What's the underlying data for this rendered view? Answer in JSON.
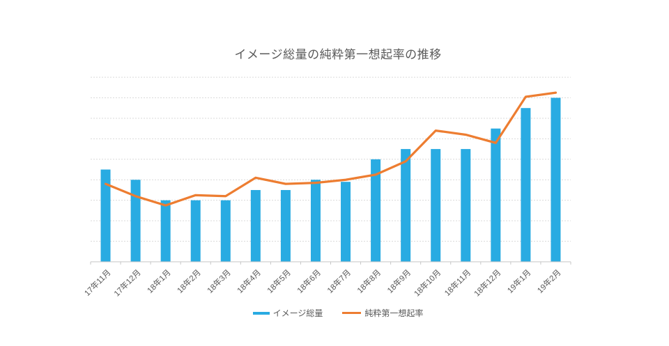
{
  "title": "イメージ総量の純粋第一想起率の推移",
  "chart_data": {
    "type": "bar",
    "subtype": "combo-bar-line",
    "title": "イメージ総量の純粋第一想起率の推移",
    "categories": [
      "17年11月",
      "17年12月",
      "18年1月",
      "18年2月",
      "18年3月",
      "18年4月",
      "18年5月",
      "18年6月",
      "18年7月",
      "18年8月",
      "18年9月",
      "18年10月",
      "18年11月",
      "18年12月",
      "19年1月",
      "19年2月"
    ],
    "series": [
      {
        "name": "イメージ総量",
        "type": "bar",
        "color": "#29ABE2",
        "values": [
          4.5,
          4.0,
          3.0,
          3.0,
          3.0,
          3.5,
          3.5,
          4.0,
          3.9,
          5.0,
          5.5,
          5.5,
          5.5,
          6.5,
          7.5,
          8.0
        ]
      },
      {
        "name": "純粋第一想起率",
        "type": "line",
        "color": "#ED7D31",
        "values": [
          3.8,
          3.2,
          2.75,
          3.25,
          3.2,
          4.1,
          3.8,
          3.85,
          4.0,
          4.25,
          4.9,
          6.4,
          6.2,
          5.8,
          8.05,
          8.25
        ]
      }
    ],
    "xlabel": "",
    "ylabel": "",
    "ylim": [
      0,
      9
    ],
    "gridline_interval": 1,
    "value_unit": "gridline-units (y-axis tick labels not shown)",
    "grid": "horizontal-dashed",
    "legend_position": "bottom",
    "x_tick_label_rotation": 45
  },
  "legend": {
    "items": [
      {
        "label": "イメージ総量",
        "swatch": "bar-swatch"
      },
      {
        "label": "純粋第一想起率",
        "swatch": "line-swatch"
      }
    ]
  },
  "colors": {
    "bar": "#29ABE2",
    "line": "#ED7D31",
    "gridline": "#D9D9D9",
    "axis": "#C6C6C6",
    "text": "#595959",
    "background": "#FFFFFF"
  }
}
